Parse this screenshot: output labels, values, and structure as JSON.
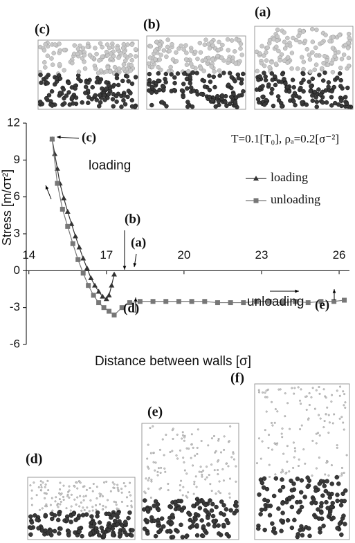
{
  "panels_top": [
    "(c)",
    "(b)",
    "(a)"
  ],
  "panels_bottom": [
    "(d)",
    "(e)",
    "(f)"
  ],
  "chart_data": {
    "type": "line",
    "title": "T=0.1[T₀], ρₐ=0.2[σ⁻²]",
    "x_label": "Distance between walls [σ]",
    "y_label": "Stress [m/στ²]",
    "xlim": [
      13.9,
      26.4
    ],
    "ylim": [
      -6,
      12
    ],
    "xticks": [
      14,
      17,
      20,
      23,
      26
    ],
    "yticks": [
      -6,
      -3,
      0,
      3,
      6,
      9,
      12
    ],
    "grid": false,
    "legend": "upper right",
    "annotations": [
      "(c)",
      "(b)",
      "(a)",
      "(d)",
      "(e)",
      "loading",
      "unloading"
    ],
    "series": [
      {
        "name": "loading",
        "color": "#333333",
        "marker": "triangle",
        "x": [
          14.9,
          15.0,
          15.1,
          15.2,
          15.35,
          15.5,
          15.65,
          15.8,
          15.95,
          16.1,
          16.25,
          16.4,
          16.55,
          16.7,
          16.85,
          17.0,
          17.1,
          17.2,
          17.3
        ],
        "values": [
          10.7,
          9.5,
          8.3,
          7.1,
          5.9,
          4.8,
          3.8,
          2.8,
          1.9,
          1.0,
          0.2,
          -0.6,
          -1.2,
          -1.7,
          -2.1,
          -2.3,
          -2.0,
          -1.2,
          -0.3
        ]
      },
      {
        "name": "unloading",
        "color": "#777777",
        "marker": "square",
        "x": [
          14.9,
          15.1,
          15.3,
          15.5,
          15.7,
          15.9,
          16.1,
          16.3,
          16.5,
          16.7,
          16.9,
          17.1,
          17.3,
          17.6,
          17.9,
          18.3,
          18.8,
          19.3,
          19.8,
          20.3,
          20.8,
          21.3,
          21.8,
          22.3,
          22.8,
          23.3,
          23.8,
          24.3,
          24.8,
          25.3,
          25.8,
          26.2
        ],
        "values": [
          10.7,
          7.1,
          5.0,
          3.6,
          2.2,
          0.9,
          -0.2,
          -1.2,
          -2.0,
          -2.6,
          -3.0,
          -3.3,
          -3.6,
          -3.0,
          -2.6,
          -2.5,
          -2.5,
          -2.5,
          -2.5,
          -2.5,
          -2.5,
          -2.6,
          -2.6,
          -2.6,
          -2.5,
          -2.5,
          -2.6,
          -2.5,
          -2.6,
          -2.5,
          -2.5,
          -2.4
        ]
      }
    ]
  }
}
